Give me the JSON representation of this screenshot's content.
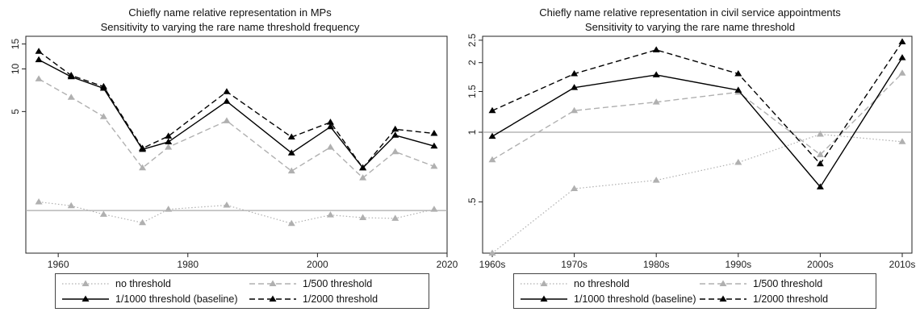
{
  "chart_data": [
    {
      "type": "line",
      "title": "Chiefly name relative representation in MPs",
      "subtitle": "Sensitivity to varying the rare name threshold frequency",
      "xlabel": "",
      "ylabel": "",
      "y_scale": "log",
      "xlim": [
        1955,
        2020
      ],
      "ylim": [
        0.5,
        17
      ],
      "x_ticks": [
        1960,
        1980,
        2000,
        2020
      ],
      "y_ticks": [
        5,
        10,
        15
      ],
      "reference_line": 1,
      "x": [
        1957,
        1962,
        1967,
        1973,
        1977,
        1986,
        1996,
        2002,
        2007,
        2012,
        2018
      ],
      "series": [
        {
          "name": "no threshold",
          "style": "dotted",
          "color": "#b0b0b0",
          "values": [
            1.15,
            1.08,
            0.94,
            0.82,
            1.02,
            1.09,
            0.81,
            0.93,
            0.89,
            0.88,
            1.02
          ]
        },
        {
          "name": "1/500 threshold",
          "style": "dashed-gray",
          "color": "#b0b0b0",
          "values": [
            8.5,
            6.3,
            4.6,
            2.0,
            2.8,
            4.3,
            1.9,
            2.8,
            1.7,
            2.6,
            2.05
          ]
        },
        {
          "name": "1/1000 threshold (baseline)",
          "style": "solid",
          "color": "#000000",
          "values": [
            11.6,
            8.8,
            7.3,
            2.7,
            3.05,
            5.9,
            2.55,
            3.9,
            2.0,
            3.4,
            2.85
          ]
        },
        {
          "name": "1/2000 threshold",
          "style": "dashed-black",
          "color": "#000000",
          "values": [
            13.3,
            9.0,
            7.5,
            2.75,
            3.35,
            6.9,
            3.3,
            4.2,
            2.0,
            3.75,
            3.5
          ]
        }
      ]
    },
    {
      "type": "line",
      "title": "Chiefly name relative representation in civil service appointments",
      "subtitle": "Sensitivity to varying the rare name threshold",
      "xlabel": "",
      "ylabel": "",
      "y_scale": "log",
      "categories": [
        "1960s",
        "1970s",
        "1980s",
        "1990s",
        "2000s",
        "2010s"
      ],
      "ylim": [
        0.3,
        2.6
      ],
      "y_ticks": [
        0.5,
        1,
        1.5,
        2,
        2.5
      ],
      "y_tick_labels": [
        ".5",
        "1",
        "1.5",
        "2",
        "2.5"
      ],
      "reference_line": 1,
      "series": [
        {
          "name": "no threshold",
          "style": "dotted",
          "color": "#b0b0b0",
          "values": [
            0.3,
            0.57,
            0.62,
            0.74,
            0.98,
            0.91
          ]
        },
        {
          "name": "1/500 threshold",
          "style": "dashed-gray",
          "color": "#b0b0b0",
          "values": [
            0.76,
            1.24,
            1.35,
            1.49,
            0.8,
            1.8
          ]
        },
        {
          "name": "1/1000 threshold (baseline)",
          "style": "solid",
          "color": "#000000",
          "values": [
            0.96,
            1.56,
            1.77,
            1.52,
            0.58,
            2.1
          ]
        },
        {
          "name": "1/2000 threshold",
          "style": "dashed-black",
          "color": "#000000",
          "values": [
            1.24,
            1.79,
            2.27,
            1.79,
            0.73,
            2.46
          ]
        }
      ]
    }
  ],
  "legend": {
    "no_threshold": "no threshold",
    "t500": "1/500 threshold",
    "t1000": "1/1000 threshold (baseline)",
    "t2000": "1/2000 threshold"
  }
}
